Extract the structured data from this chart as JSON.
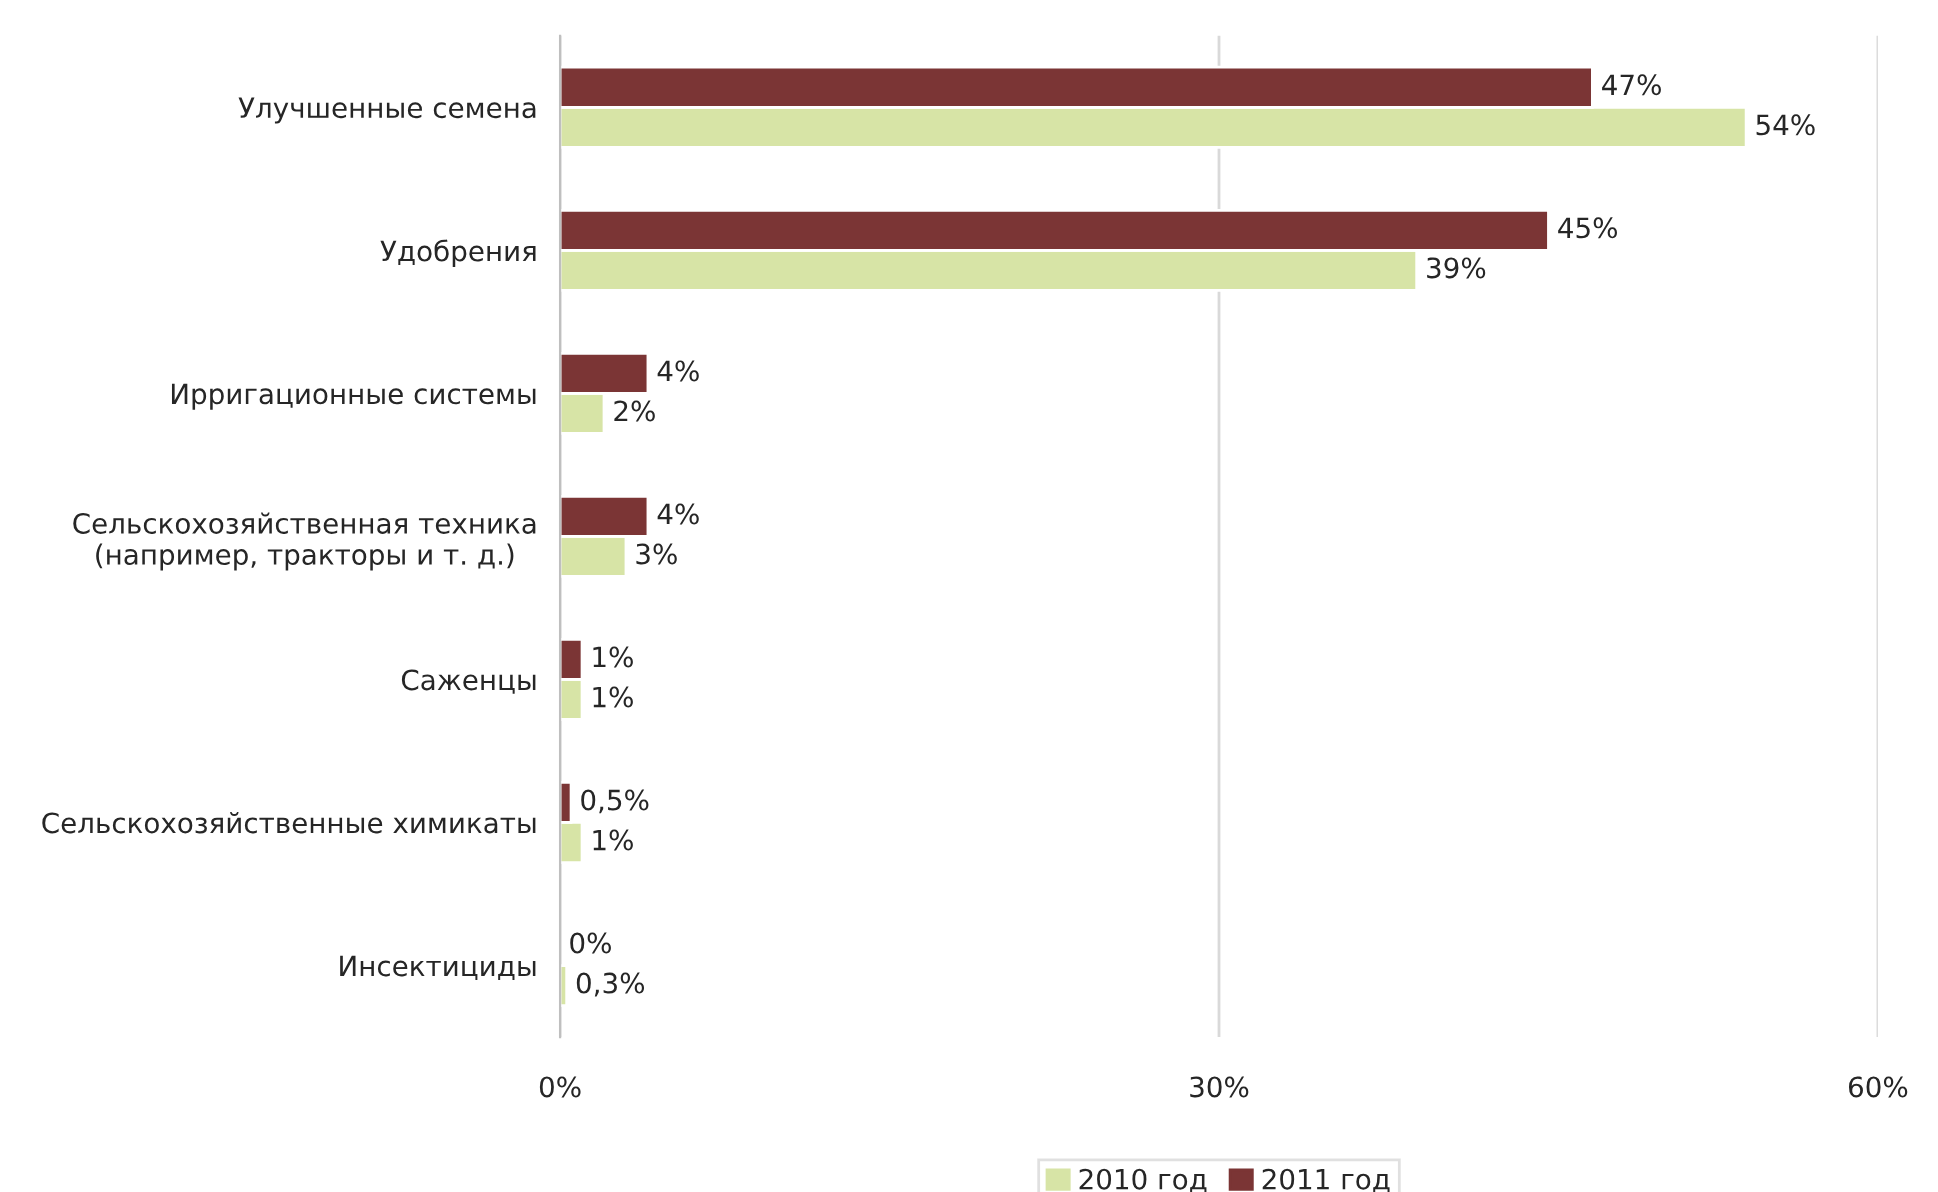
{
  "chart_data": {
    "type": "bar",
    "orientation": "horizontal",
    "categories": [
      "Улучшенные семена",
      "Удобрения",
      "Ирригационные системы",
      "Сельскохозяйственная техника\n(например, тракторы и т. д.)",
      "Саженцы",
      "Сельскохозяйственные химикаты",
      "Инсектициды"
    ],
    "series": [
      {
        "name": "2010 год",
        "color": "#d7e4a6",
        "values": [
          54,
          39,
          2,
          3,
          1,
          1,
          0.3
        ],
        "value_labels": [
          "54%",
          "39%",
          "2%",
          "3%",
          "1%",
          "1%",
          "0,3%"
        ]
      },
      {
        "name": "2011 год",
        "color": "#7b3535",
        "values": [
          47,
          45,
          4,
          4,
          1,
          0.5,
          0
        ],
        "value_labels": [
          "47%",
          "45%",
          "4%",
          "4%",
          "1%",
          "0,5%",
          "0%"
        ]
      }
    ],
    "xlim": [
      0,
      60
    ],
    "xticks": [
      {
        "value": 0,
        "label": "0%"
      },
      {
        "value": 30,
        "label": "30%"
      },
      {
        "value": 60,
        "label": "60%"
      }
    ],
    "grid": "x",
    "legend": "bottom"
  }
}
